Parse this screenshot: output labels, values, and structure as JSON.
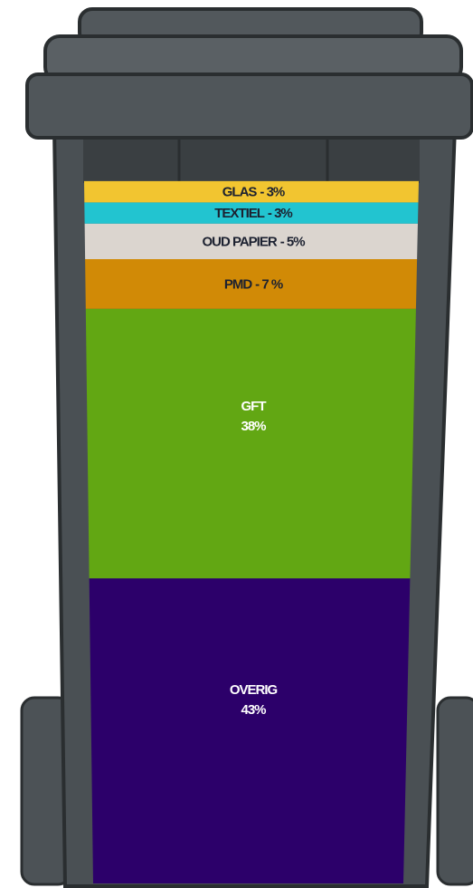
{
  "chart_data": {
    "type": "stacked-bin",
    "categories": [
      "GLAS",
      "TEXTIEL",
      "OUD PAPIER",
      "PMD",
      "GFT",
      "OVERIG"
    ],
    "values": [
      3,
      3,
      5,
      7,
      38,
      43
    ],
    "value_labels": [
      "- 3%",
      "- 3%",
      "- 5%",
      "- 7 %",
      "38%",
      "43%"
    ],
    "colors": [
      "#f2c530",
      "#22c4d0",
      "#dbd5cf",
      "#d18a06",
      "#62a713",
      "#2c006a"
    ]
  }
}
